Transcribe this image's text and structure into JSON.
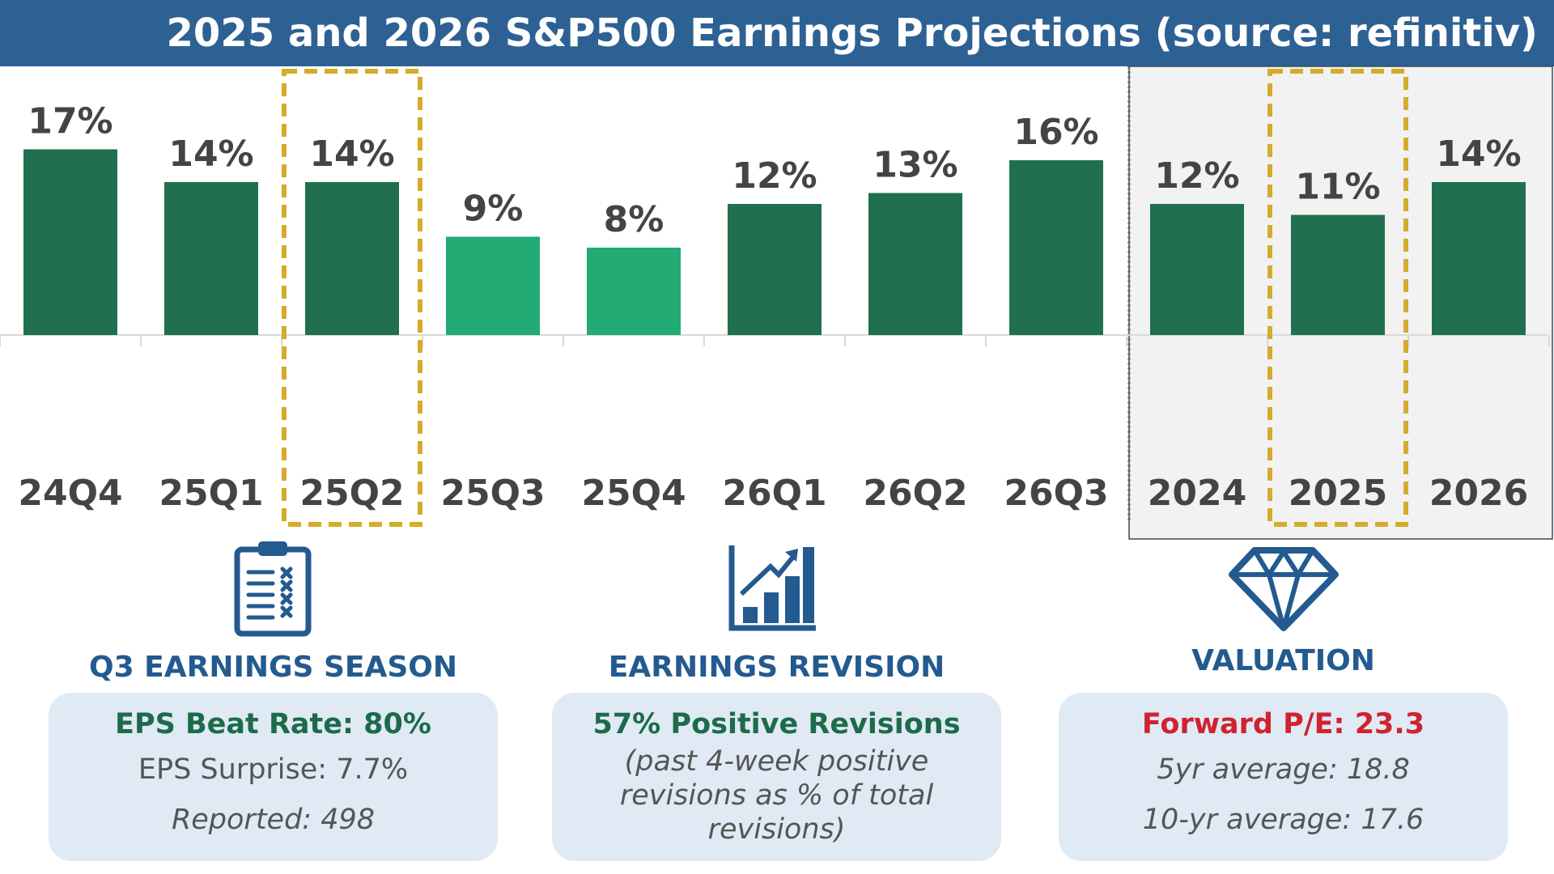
{
  "title": "2025 and 2026 S&P500 Earnings Projections (source: refinitiv)",
  "colors": {
    "header_bg": "#2d6194",
    "bar_dark": "#20704f",
    "bar_light": "#22ab74",
    "highlight_border": "#d4ac2b",
    "label_text": "#444444",
    "annual_panel_bg": "#f2f2f2",
    "card_bg": "#dfeaf5",
    "card_title": "#235a8f",
    "green_text": "#1c6b49",
    "red_text": "#d12230"
  },
  "chart_data": {
    "type": "bar",
    "title": "2025 and 2026 S&P500 Earnings Projections (source: refinitiv)",
    "categories": [
      "24Q4",
      "25Q1",
      "25Q2",
      "25Q3",
      "25Q4",
      "26Q1",
      "26Q2",
      "26Q3",
      "2024",
      "2025",
      "2026"
    ],
    "values": [
      17,
      14,
      14,
      9,
      8,
      12,
      13,
      16,
      12,
      11,
      14
    ],
    "data_labels": [
      "17%",
      "14%",
      "14%",
      "9%",
      "8%",
      "12%",
      "13%",
      "16%",
      "12%",
      "11%",
      "14%"
    ],
    "bar_colors": [
      "dark",
      "dark",
      "dark",
      "light",
      "light",
      "dark",
      "dark",
      "dark",
      "dark",
      "dark",
      "dark"
    ],
    "highlighted": [
      "25Q2",
      "2025"
    ],
    "annual_group": [
      "2024",
      "2025",
      "2026"
    ],
    "unit": "%",
    "xlabel": "",
    "ylabel": "",
    "ylim": [
      0,
      20
    ],
    "grid": false
  },
  "cards": {
    "season": {
      "title": "Q3 EARNINGS SEASON",
      "icon": "clipboard-checklist-icon",
      "headline": "EPS Beat Rate: 80%",
      "line1": "EPS Surprise: 7.7%",
      "line2": "Reported: 498"
    },
    "revision": {
      "title": "EARNINGS REVISION",
      "icon": "bar-chart-growth-icon",
      "headline": "57% Positive Revisions",
      "sub1": "(past 4-week positive",
      "sub2": "revisions as % of total",
      "sub3": "revisions)"
    },
    "valuation": {
      "title": "VALUATION",
      "icon": "diamond-icon",
      "headline": "Forward P/E: 23.3",
      "line1": "5yr average: 18.8",
      "line2": "10-yr average: 17.6"
    }
  }
}
